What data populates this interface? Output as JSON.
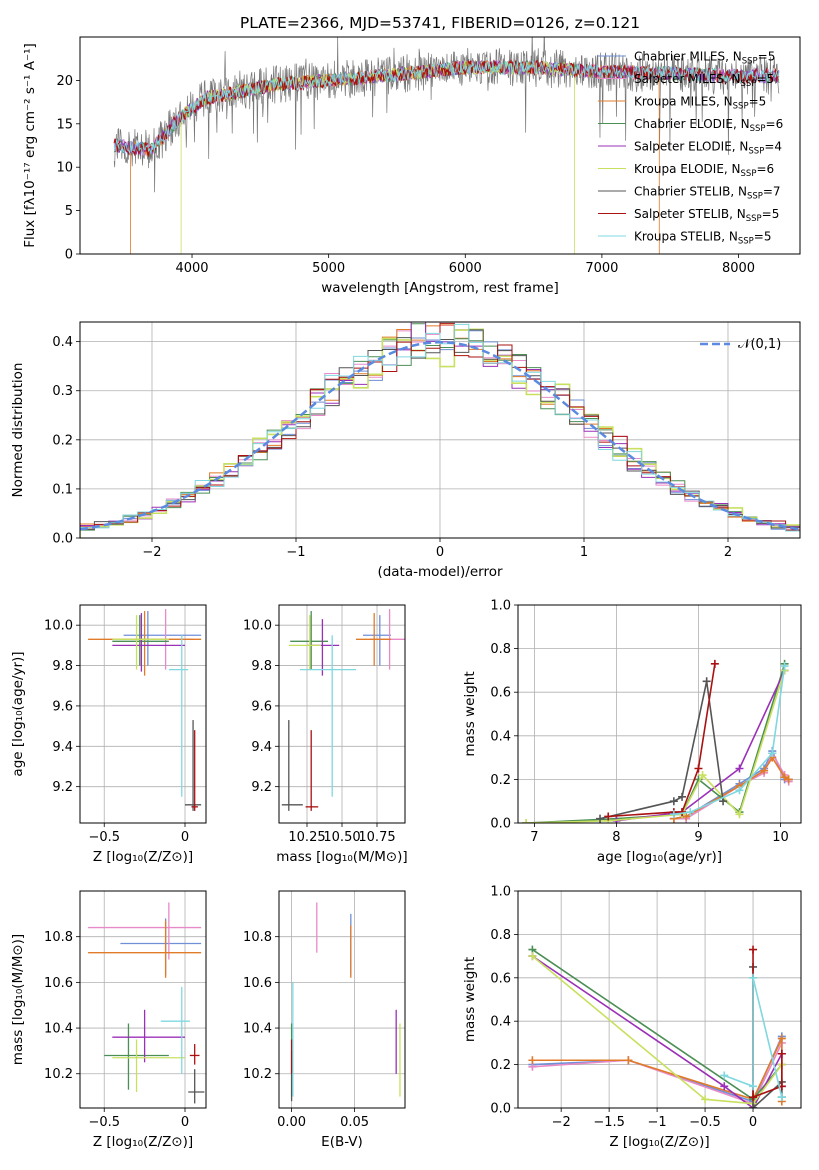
{
  "figure_title": "PLATE=2366, MJD=53741, FIBERID=0126, z=0.121",
  "legend": [
    {
      "label": "Chabrier MILES, N",
      "sub": "SSP",
      "tail": "=5",
      "color": "#6f8fd6"
    },
    {
      "label": "Salpeter MILES, N",
      "sub": "SSP",
      "tail": "=5",
      "color": "#e88ac8"
    },
    {
      "label": "Kroupa MILES, N",
      "sub": "SSP",
      "tail": "=5",
      "color": "#e07b2a"
    },
    {
      "label": "Chabrier ELODIE, N",
      "sub": "SSP",
      "tail": "=6",
      "color": "#4c8f55"
    },
    {
      "label": "Salpeter ELODIE, N",
      "sub": "SSP",
      "tail": "=4",
      "color": "#9b30b8"
    },
    {
      "label": "Kroupa ELODIE, N",
      "sub": "SSP",
      "tail": "=6",
      "color": "#c8e060"
    },
    {
      "label": "Chabrier STELIB, N",
      "sub": "SSP",
      "tail": "=7",
      "color": "#555555"
    },
    {
      "label": "Salpeter STELIB, N",
      "sub": "SSP",
      "tail": "=5",
      "color": "#aa1111"
    },
    {
      "label": "Kroupa STELIB, N",
      "sub": "SSP",
      "tail": "=5",
      "color": "#7fd8e0"
    }
  ],
  "chart_data": [
    {
      "id": "spectrum",
      "type": "line",
      "xlabel": "wavelength [Angstrom, rest frame]",
      "ylabel": "Flux [fλ10⁻¹⁷ erg cm⁻² s⁻¹ A⁻¹]",
      "xlim": [
        3180,
        8450
      ],
      "ylim": [
        0,
        25
      ],
      "xticks": [
        4000,
        5000,
        6000,
        7000,
        8000
      ],
      "yticks": [
        0,
        5,
        10,
        15,
        20
      ],
      "continuum": {
        "x": [
          3450,
          3700,
          3900,
          4100,
          4300,
          4600,
          5000,
          5400,
          6000,
          6500,
          7000,
          7500,
          8000,
          8300
        ],
        "y": [
          12.5,
          12.0,
          15.5,
          18.0,
          18.5,
          19.5,
          20.0,
          20.5,
          21.5,
          21.5,
          21.0,
          20.8,
          20.5,
          20.5
        ]
      },
      "data_range": [
        3430,
        8300
      ],
      "model_cutoffs": [
        {
          "color": "#e07b2a",
          "from": 3550,
          "to": 7420
        },
        {
          "color": "#c8e060",
          "from": 3920,
          "to": 6800
        }
      ]
    },
    {
      "id": "residuals",
      "type": "bar",
      "xlabel": "(data-model)/error",
      "ylabel": "Normed distribution",
      "xlim": [
        -2.5,
        2.5
      ],
      "ylim": [
        0,
        0.44
      ],
      "xticks": [
        -2,
        -1,
        0,
        1,
        2
      ],
      "yticks": [
        0.0,
        0.1,
        0.2,
        0.3,
        0.4
      ],
      "reference": {
        "label": "𝒩(0,1)",
        "mean": 0,
        "std": 1,
        "color": "#5b8be0"
      }
    },
    {
      "id": "age_vs_Z",
      "type": "scatter",
      "xlabel": "Z [log₁₀(Z/Z⊙)]",
      "ylabel": "age  [log₁₀(age/yr)]",
      "xlim": [
        -0.65,
        0.13
      ],
      "ylim": [
        9.02,
        10.1
      ],
      "xticks": [
        -0.5,
        0.0
      ],
      "yticks": [
        9.2,
        9.4,
        9.6,
        9.8,
        10.0
      ],
      "points": [
        {
          "x": -0.23,
          "y": 9.95,
          "xe": [
            -0.38,
            0.1
          ],
          "ye": [
            9.8,
            10.07
          ],
          "color": "#6f8fd6"
        },
        {
          "x": -0.12,
          "y": 9.93,
          "xe": [
            -0.38,
            0.05
          ],
          "ye": [
            9.78,
            10.08
          ],
          "color": "#e88ac8"
        },
        {
          "x": -0.25,
          "y": 9.93,
          "xe": [
            -0.6,
            0.1
          ],
          "ye": [
            9.75,
            10.07
          ],
          "color": "#e07b2a"
        },
        {
          "x": -0.28,
          "y": 9.92,
          "xe": [
            -0.45,
            -0.1
          ],
          "ye": [
            9.8,
            10.05
          ],
          "color": "#4c8f55"
        },
        {
          "x": -0.27,
          "y": 9.9,
          "xe": [
            -0.45,
            0.0
          ],
          "ye": [
            9.77,
            10.06
          ],
          "color": "#9b30b8"
        },
        {
          "x": -0.3,
          "y": 9.93,
          "xe": [
            -0.45,
            -0.1
          ],
          "ye": [
            9.78,
            10.05
          ],
          "color": "#c8e060"
        },
        {
          "x": 0.05,
          "y": 9.11,
          "xe": [
            0.0,
            0.1
          ],
          "ye": [
            9.08,
            9.53
          ],
          "color": "#555555"
        },
        {
          "x": 0.06,
          "y": 9.1,
          "xe": [
            0.04,
            0.08
          ],
          "ye": [
            9.08,
            9.48
          ],
          "color": "#aa1111"
        },
        {
          "x": -0.02,
          "y": 9.78,
          "xe": [
            -0.1,
            0.02
          ],
          "ye": [
            9.15,
            9.95
          ],
          "color": "#7fd8e0"
        }
      ]
    },
    {
      "id": "age_vs_mass",
      "type": "scatter",
      "xlabel": "mass [log₁₀(M/M⊙)]",
      "ylabel": "",
      "xlim": [
        10.05,
        10.95
      ],
      "ylim": [
        9.02,
        10.1
      ],
      "xticks": [
        10.25,
        10.5,
        10.75
      ],
      "xticklabels": [
        "10.25",
        "10.50",
        "10.75"
      ],
      "yticks": [
        9.2,
        9.4,
        9.6,
        9.8,
        10.0
      ],
      "points": [
        {
          "x": 10.77,
          "y": 9.95,
          "xe": [
            10.65,
            10.85
          ],
          "ye": [
            9.8,
            10.05
          ],
          "color": "#6f8fd6"
        },
        {
          "x": 10.84,
          "y": 9.93,
          "xe": [
            10.7,
            10.95
          ],
          "ye": [
            9.78,
            10.08
          ],
          "color": "#e88ac8"
        },
        {
          "x": 10.73,
          "y": 9.93,
          "xe": [
            10.6,
            10.85
          ],
          "ye": [
            9.8,
            10.06
          ],
          "color": "#e07b2a"
        },
        {
          "x": 10.28,
          "y": 9.92,
          "xe": [
            10.13,
            10.4
          ],
          "ye": [
            9.78,
            10.07
          ],
          "color": "#4c8f55"
        },
        {
          "x": 10.36,
          "y": 9.9,
          "xe": [
            10.25,
            10.48
          ],
          "ye": [
            9.75,
            10.03
          ],
          "color": "#9b30b8"
        },
        {
          "x": 10.27,
          "y": 9.9,
          "xe": [
            10.12,
            10.35
          ],
          "ye": [
            9.78,
            10.05
          ],
          "color": "#c8e060"
        },
        {
          "x": 10.12,
          "y": 9.11,
          "xe": [
            10.07,
            10.22
          ],
          "ye": [
            9.08,
            9.53
          ],
          "color": "#555555"
        },
        {
          "x": 10.28,
          "y": 9.1,
          "xe": [
            10.24,
            10.33
          ],
          "ye": [
            9.08,
            9.48
          ],
          "color": "#aa1111"
        },
        {
          "x": 10.43,
          "y": 9.78,
          "xe": [
            10.2,
            10.6
          ],
          "ye": [
            9.15,
            9.95
          ],
          "color": "#7fd8e0"
        }
      ]
    },
    {
      "id": "weight_vs_age",
      "type": "line",
      "xlabel": "age  [log₁₀(age/yr)]",
      "ylabel": "mass weight",
      "xlim": [
        6.8,
        10.25
      ],
      "ylim": [
        0,
        1.0
      ],
      "xticks": [
        7,
        8,
        9,
        10
      ],
      "yticks": [
        0.0,
        0.2,
        0.4,
        0.6,
        0.8,
        1.0
      ],
      "series": [
        {
          "color": "#6f8fd6",
          "x": [
            8.7,
            8.85,
            9.5,
            9.8,
            9.9,
            10.05,
            10.1
          ],
          "y": [
            0.02,
            0.03,
            0.18,
            0.25,
            0.33,
            0.2,
            0.2
          ]
        },
        {
          "color": "#e88ac8",
          "x": [
            8.7,
            8.85,
            9.5,
            9.8,
            9.9,
            10.05,
            10.1
          ],
          "y": [
            0.02,
            0.02,
            0.17,
            0.23,
            0.32,
            0.22,
            0.19
          ]
        },
        {
          "color": "#e07b2a",
          "x": [
            8.7,
            8.85,
            9.5,
            9.8,
            9.9,
            10.05,
            10.1
          ],
          "y": [
            0.02,
            0.03,
            0.17,
            0.24,
            0.3,
            0.21,
            0.2
          ]
        },
        {
          "color": "#4c8f55",
          "x": [
            6.9,
            8.0,
            8.8,
            9.0,
            9.5,
            10.05
          ],
          "y": [
            0.0,
            0.02,
            0.04,
            0.2,
            0.05,
            0.73
          ]
        },
        {
          "color": "#9b30b8",
          "x": [
            8.0,
            8.8,
            9.5,
            10.05
          ],
          "y": [
            0.01,
            0.05,
            0.25,
            0.7
          ]
        },
        {
          "color": "#c8e060",
          "x": [
            6.9,
            7.9,
            8.8,
            9.05,
            9.5,
            10.05
          ],
          "y": [
            0.0,
            0.01,
            0.04,
            0.22,
            0.04,
            0.7
          ]
        },
        {
          "color": "#555555",
          "x": [
            7.8,
            8.7,
            8.8,
            9.1,
            9.3
          ],
          "y": [
            0.02,
            0.1,
            0.12,
            0.65,
            0.1
          ]
        },
        {
          "color": "#aa1111",
          "x": [
            7.9,
            8.7,
            8.8,
            9.0,
            9.2
          ],
          "y": [
            0.03,
            0.05,
            0.05,
            0.25,
            0.73
          ]
        },
        {
          "color": "#7fd8e0",
          "x": [
            8.7,
            8.9,
            9.5,
            9.9,
            10.05
          ],
          "y": [
            0.04,
            0.05,
            0.15,
            0.32,
            0.72
          ]
        }
      ]
    },
    {
      "id": "mass_vs_Z",
      "type": "scatter",
      "xlabel": "Z [log₁₀(Z/Z⊙)]",
      "ylabel": "mass [log₁₀(M/M⊙)]",
      "xlim": [
        -0.65,
        0.13
      ],
      "ylim": [
        10.05,
        11.0
      ],
      "xticks": [
        -0.5,
        0.0
      ],
      "yticks": [
        10.2,
        10.4,
        10.6,
        10.8
      ],
      "points": [
        {
          "x": -0.12,
          "y": 10.77,
          "xe": [
            -0.4,
            0.1
          ],
          "ye": [
            10.63,
            10.88
          ],
          "color": "#6f8fd6"
        },
        {
          "x": -0.1,
          "y": 10.84,
          "xe": [
            -0.6,
            0.1
          ],
          "ye": [
            10.7,
            10.95
          ],
          "color": "#e88ac8"
        },
        {
          "x": -0.12,
          "y": 10.73,
          "xe": [
            -0.6,
            0.1
          ],
          "ye": [
            10.62,
            10.87
          ],
          "color": "#e07b2a"
        },
        {
          "x": -0.35,
          "y": 10.28,
          "xe": [
            -0.5,
            -0.1
          ],
          "ye": [
            10.13,
            10.42
          ],
          "color": "#4c8f55"
        },
        {
          "x": -0.25,
          "y": 10.36,
          "xe": [
            -0.45,
            -0.0
          ],
          "ye": [
            10.25,
            10.48
          ],
          "color": "#9b30b8"
        },
        {
          "x": -0.3,
          "y": 10.27,
          "xe": [
            -0.45,
            0.0
          ],
          "ye": [
            10.12,
            10.35
          ],
          "color": "#c8e060"
        },
        {
          "x": 0.06,
          "y": 10.12,
          "xe": [
            0.02,
            0.12
          ],
          "ye": [
            10.07,
            10.22
          ],
          "color": "#555555"
        },
        {
          "x": 0.06,
          "y": 10.28,
          "xe": [
            0.03,
            0.09
          ],
          "ye": [
            10.24,
            10.33
          ],
          "color": "#aa1111"
        },
        {
          "x": -0.02,
          "y": 10.43,
          "xe": [
            -0.15,
            0.03
          ],
          "ye": [
            10.2,
            10.58
          ],
          "color": "#7fd8e0"
        }
      ]
    },
    {
      "id": "mass_vs_EBV",
      "type": "scatter",
      "xlabel": "E(B-V)",
      "ylabel": "",
      "xlim": [
        -0.01,
        0.09
      ],
      "ylim": [
        10.05,
        11.0
      ],
      "xticks": [
        0.0,
        0.05
      ],
      "xticklabels": [
        "0.00",
        "0.05"
      ],
      "yticks": [
        10.2,
        10.4,
        10.6,
        10.8
      ],
      "points": [
        {
          "x": 0.047,
          "y": 10.77,
          "ye": [
            10.63,
            10.9
          ],
          "color": "#6f8fd6"
        },
        {
          "x": 0.02,
          "y": 10.84,
          "ye": [
            10.73,
            10.95
          ],
          "color": "#e88ac8"
        },
        {
          "x": 0.047,
          "y": 10.73,
          "ye": [
            10.62,
            10.85
          ],
          "color": "#e07b2a"
        },
        {
          "x": 0.0,
          "y": 10.28,
          "ye": [
            10.1,
            10.42
          ],
          "color": "#4c8f55"
        },
        {
          "x": 0.083,
          "y": 10.36,
          "ye": [
            10.2,
            10.48
          ],
          "color": "#9b30b8"
        },
        {
          "x": 0.086,
          "y": 10.27,
          "ye": [
            10.1,
            10.42
          ],
          "color": "#c8e060"
        },
        {
          "x": 0.0,
          "y": 10.12,
          "ye": [
            10.08,
            10.3
          ],
          "color": "#555555"
        },
        {
          "x": 0.0,
          "y": 10.28,
          "ye": [
            10.2,
            10.35
          ],
          "color": "#aa1111"
        },
        {
          "x": 0.001,
          "y": 10.43,
          "ye": [
            10.1,
            10.6
          ],
          "color": "#7fd8e0"
        }
      ]
    },
    {
      "id": "weight_vs_Z",
      "type": "line",
      "xlabel": "Z [log₁₀(Z/Z⊙)]",
      "ylabel": "mass weight",
      "xlim": [
        -2.45,
        0.5
      ],
      "ylim": [
        0,
        1.0
      ],
      "xticks": [
        -2.0,
        -1.5,
        -1.0,
        -0.5,
        0.0
      ],
      "yticks": [
        0.0,
        0.2,
        0.4,
        0.6,
        0.8,
        1.0
      ],
      "series": [
        {
          "color": "#6f8fd6",
          "x": [
            -2.3,
            -1.3,
            0.0,
            0.3,
            0.3
          ],
          "y": [
            0.2,
            0.22,
            0.03,
            0.33,
            0.1
          ]
        },
        {
          "color": "#e88ac8",
          "x": [
            -2.3,
            -1.3,
            0.0,
            0.3
          ],
          "y": [
            0.19,
            0.22,
            0.02,
            0.3
          ]
        },
        {
          "color": "#e07b2a",
          "x": [
            -2.3,
            -1.3,
            0.0,
            0.3,
            0.3
          ],
          "y": [
            0.22,
            0.22,
            0.04,
            0.32,
            0.03
          ]
        },
        {
          "color": "#4c8f55",
          "x": [
            -2.3,
            0.0,
            0.3
          ],
          "y": [
            0.73,
            0.04,
            0.2
          ]
        },
        {
          "color": "#9b30b8",
          "x": [
            -2.3,
            -0.3,
            0.0,
            0.3
          ],
          "y": [
            0.7,
            0.1,
            0.0,
            0.25
          ]
        },
        {
          "color": "#c8e060",
          "x": [
            -2.3,
            -0.5,
            0.0,
            0.3
          ],
          "y": [
            0.7,
            0.04,
            0.02,
            0.2
          ]
        },
        {
          "color": "#555555",
          "x": [
            0.0,
            0.0,
            0.3,
            0.3
          ],
          "y": [
            0.65,
            0.0,
            0.12,
            0.05
          ]
        },
        {
          "color": "#aa1111",
          "x": [
            0.0,
            0.0,
            0.3,
            0.3
          ],
          "y": [
            0.73,
            0.05,
            0.1,
            0.25
          ]
        },
        {
          "color": "#7fd8e0",
          "x": [
            -0.3,
            0.0,
            0.0,
            0.3
          ],
          "y": [
            0.15,
            0.1,
            0.6,
            0.05
          ]
        }
      ]
    }
  ]
}
